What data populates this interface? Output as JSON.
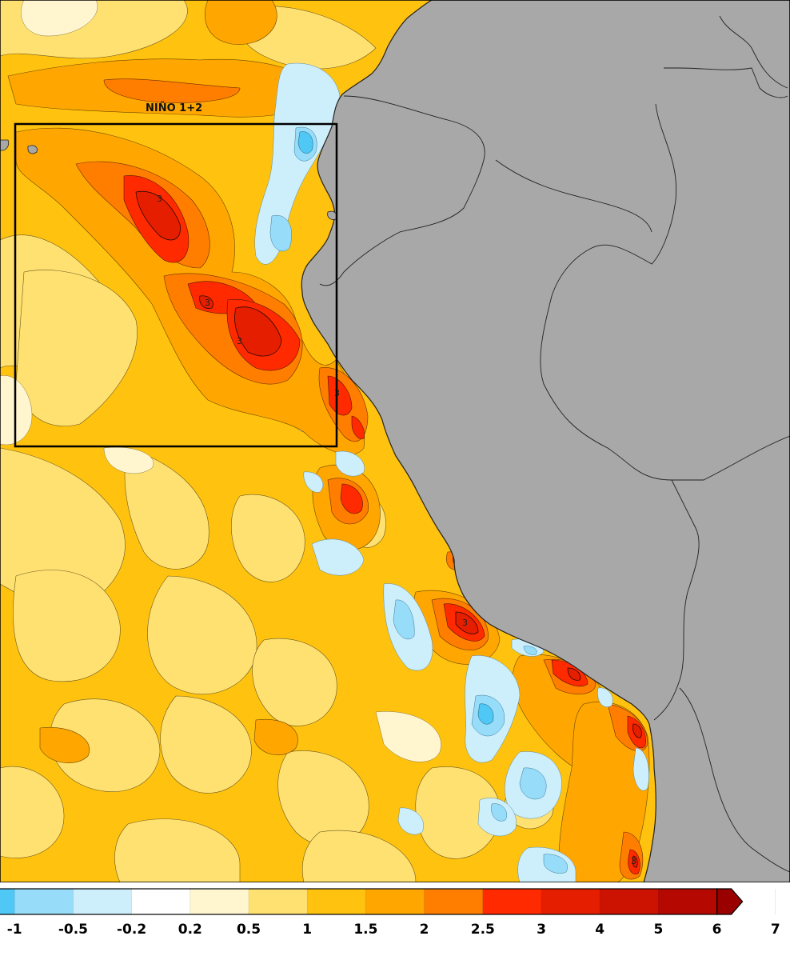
{
  "region_box": {
    "label": "NIÑO 1+2"
  },
  "contour_labels": [
    "3",
    "3",
    "3",
    "3",
    "3",
    "3"
  ],
  "colorbar": {
    "tick_labels": [
      "-1",
      "-0.5",
      "-0.2",
      "0.2",
      "0.5",
      "1",
      "1.5",
      "2",
      "2.5",
      "3",
      "4",
      "5",
      "6",
      "7"
    ],
    "bin_colors": [
      "#4fc8f5",
      "#97dcf8",
      "#cdeefb",
      "#ffffff",
      "#fff6d0",
      "#ffe171",
      "#ffc20e",
      "#ffa600",
      "#ff7e00",
      "#ff2a00",
      "#e61e00",
      "#cc1200",
      "#b40800",
      "#9a0000"
    ]
  },
  "colors": {
    "land": "#a8a8a8",
    "warm_base": "#ffc20e",
    "light_warm": "#ffe171",
    "pale_warm": "#fff6d0",
    "orange": "#ffa600",
    "dark_orange": "#ff7e00",
    "red": "#ff2a00",
    "deep_red": "#e61e00",
    "light_blue": "#cdeefb",
    "blue": "#97dcf8",
    "deep_blue": "#4fc8f5"
  }
}
